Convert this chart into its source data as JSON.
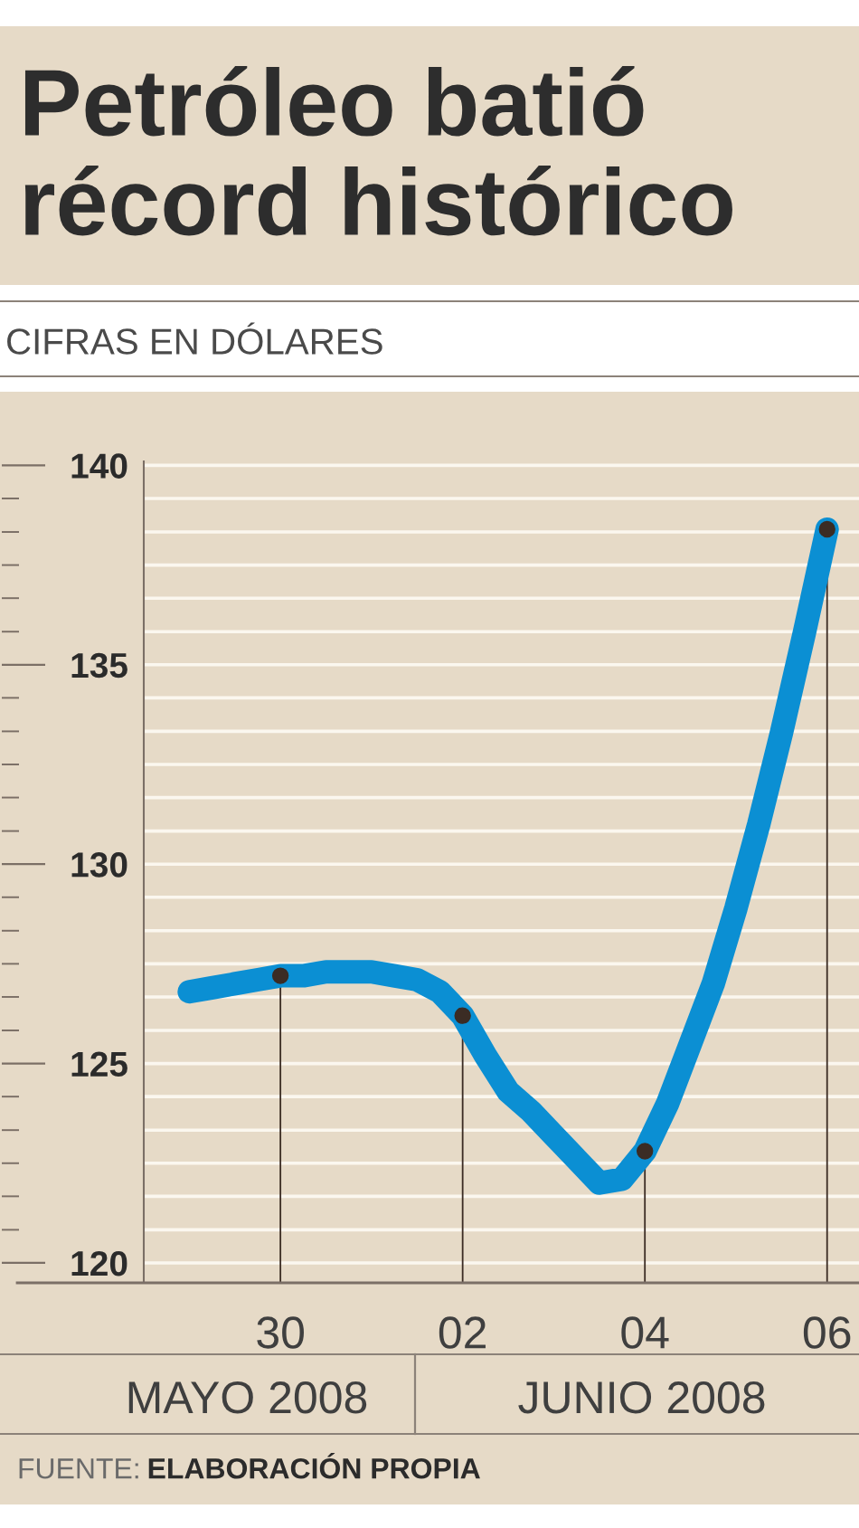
{
  "chart_data": {
    "type": "line",
    "title": "Petróleo batió récord histórico",
    "subtitle": "CIFRAS EN DÓLARES",
    "annotations": [
      "MAYO 2008",
      "JUNIO 2008",
      "FUENTE:",
      "ELABORACIÓN PROPIA"
    ],
    "categories": [
      null,
      null,
      null,
      null,
      "30",
      null,
      null,
      null,
      null,
      null,
      null,
      null,
      "02",
      null,
      null,
      null,
      null,
      null,
      null,
      null,
      "04",
      null,
      null,
      null,
      null,
      null,
      null,
      null,
      "06"
    ],
    "ylim": [
      119.5,
      140.1
    ],
    "yticks": [
      120,
      {
        "value": 120.83,
        "label": null
      },
      {
        "value": 121.67,
        "label": null
      },
      {
        "value": 122.5,
        "label": null
      },
      {
        "value": 123.33,
        "label": null
      },
      {
        "value": 124.17,
        "label": null
      },
      125,
      {
        "value": 125.83,
        "label": null
      },
      {
        "value": 126.67,
        "label": null
      },
      {
        "value": 127.5,
        "label": null
      },
      {
        "value": 128.33,
        "label": null
      },
      {
        "value": 129.17,
        "label": null
      },
      130,
      {
        "value": 130.83,
        "label": null
      },
      {
        "value": 131.67,
        "label": null
      },
      {
        "value": 132.5,
        "label": null
      },
      {
        "value": 133.33,
        "label": null
      },
      {
        "value": 134.17,
        "label": null
      },
      135,
      {
        "value": 135.83,
        "label": null
      },
      {
        "value": 136.67,
        "label": null
      },
      {
        "value": 137.5,
        "label": null
      },
      {
        "value": 138.33,
        "label": null
      },
      {
        "value": 139.17,
        "label": null
      },
      140
    ],
    "grid": "y",
    "series": [
      {
        "color": "#0b8fd3",
        "values": [
          126.8,
          126.9,
          127.0,
          127.1,
          127.2,
          127.2,
          127.3,
          127.3,
          127.3,
          127.2,
          127.1,
          126.8,
          126.2,
          125.2,
          124.3,
          123.8,
          123.2,
          122.6,
          122.0,
          122.1,
          122.8,
          124.0,
          125.5,
          127.0,
          128.9,
          131.0,
          133.3,
          135.8,
          138.4
        ]
      },
      {
        "type": "lollipop",
        "color": "#3b2c24",
        "values": [
          null,
          null,
          null,
          null,
          127.2,
          null,
          null,
          null,
          null,
          null,
          null,
          null,
          126.2,
          null,
          null,
          null,
          null,
          null,
          null,
          null,
          122.8,
          null,
          null,
          null,
          null,
          null,
          null,
          null,
          138.4
        ]
      }
    ]
  }
}
